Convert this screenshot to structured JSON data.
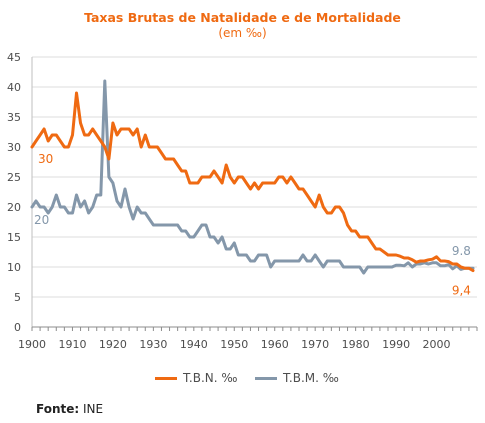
{
  "chart_data": {
    "type": "line",
    "title": "Taxas Brutas de Natalidade e de Mortalidade",
    "subtitle": "(em ‰)",
    "xlim": [
      1900,
      2010
    ],
    "ylim": [
      0,
      45
    ],
    "x_ticks": [
      1900,
      1910,
      1920,
      1930,
      1940,
      1950,
      1960,
      1970,
      1980,
      1990,
      2000
    ],
    "y_ticks": [
      0,
      5,
      10,
      15,
      20,
      25,
      30,
      35,
      40,
      45
    ],
    "grid": true,
    "legend_position": "bottom",
    "x": [
      1900,
      1901,
      1902,
      1903,
      1904,
      1905,
      1906,
      1907,
      1908,
      1909,
      1910,
      1911,
      1912,
      1913,
      1914,
      1915,
      1916,
      1917,
      1918,
      1919,
      1920,
      1921,
      1922,
      1923,
      1924,
      1925,
      1926,
      1927,
      1928,
      1929,
      1930,
      1931,
      1932,
      1933,
      1934,
      1935,
      1936,
      1937,
      1938,
      1939,
      1940,
      1941,
      1942,
      1943,
      1944,
      1945,
      1946,
      1947,
      1948,
      1949,
      1950,
      1951,
      1952,
      1953,
      1954,
      1955,
      1956,
      1957,
      1958,
      1959,
      1960,
      1961,
      1962,
      1963,
      1964,
      1965,
      1966,
      1967,
      1968,
      1969,
      1970,
      1971,
      1972,
      1973,
      1974,
      1975,
      1976,
      1977,
      1978,
      1979,
      1980,
      1981,
      1982,
      1983,
      1984,
      1985,
      1986,
      1987,
      1988,
      1989,
      1990,
      1991,
      1992,
      1993,
      1994,
      1995,
      1996,
      1997,
      1998,
      1999,
      2000,
      2001,
      2002,
      2003,
      2004,
      2005,
      2006,
      2007,
      2008,
      2009
    ],
    "series": [
      {
        "name": "T.B.N. ‰",
        "color": "#ef6a12",
        "values": [
          30,
          31,
          32,
          33,
          31,
          32,
          32,
          31,
          30,
          30,
          32,
          39,
          34,
          32,
          32,
          33,
          32,
          31,
          30,
          28,
          34,
          32,
          33,
          33,
          33,
          32,
          33,
          30,
          32,
          30,
          30,
          30,
          29,
          28,
          28,
          28,
          27,
          26,
          26,
          24,
          24,
          24,
          25,
          25,
          25,
          26,
          25,
          24,
          27,
          25,
          24,
          25,
          25,
          24,
          23,
          24,
          23,
          24,
          24,
          24,
          24,
          25,
          25,
          24,
          25,
          24,
          23,
          23,
          22,
          21,
          20,
          22,
          20,
          19,
          19,
          20,
          20,
          19,
          17,
          16,
          16,
          15,
          15,
          15,
          14,
          13,
          13,
          12.5,
          12,
          12,
          12,
          11.8,
          11.5,
          11.5,
          11.2,
          10.8,
          11,
          11,
          11.2,
          11.3,
          11.7,
          11,
          11,
          10.9,
          10.5,
          10.5,
          10,
          9.8,
          9.8,
          9.4
        ]
      },
      {
        "name": "T.B.M. ‰",
        "color": "#8497aa",
        "values": [
          20,
          21,
          20,
          20,
          19,
          20,
          22,
          20,
          20,
          19,
          19,
          22,
          20,
          21,
          19,
          20,
          22,
          22,
          41,
          25,
          24,
          21,
          20,
          23,
          20,
          18,
          20,
          19,
          19,
          18,
          17,
          17,
          17,
          17,
          17,
          17,
          17,
          16,
          16,
          15,
          15,
          16,
          17,
          17,
          15,
          15,
          14,
          15,
          13,
          13,
          14,
          12,
          12,
          12,
          11,
          11,
          12,
          12,
          12,
          10,
          11,
          11,
          11,
          11,
          11,
          11,
          11,
          12,
          11,
          11,
          12,
          11,
          10,
          11,
          11,
          11,
          11,
          10,
          10,
          10,
          10,
          10,
          9,
          10,
          10,
          10,
          10,
          10,
          10,
          10,
          10.3,
          10.3,
          10.2,
          10.7,
          10,
          10.5,
          10.5,
          10.7,
          10.5,
          10.7,
          10.7,
          10.2,
          10.2,
          10.4,
          9.7,
          10.2,
          9.6,
          9.8,
          9.8,
          9.8
        ]
      }
    ],
    "annotations": [
      {
        "text": "30",
        "series": 0,
        "at": "start"
      },
      {
        "text": "20",
        "series": 1,
        "at": "start"
      },
      {
        "text": "9.8",
        "series": 1,
        "at": "end"
      },
      {
        "text": "9,4",
        "series": 0,
        "at": "end"
      }
    ]
  },
  "source": {
    "label": "Fonte:",
    "value": "INE"
  }
}
